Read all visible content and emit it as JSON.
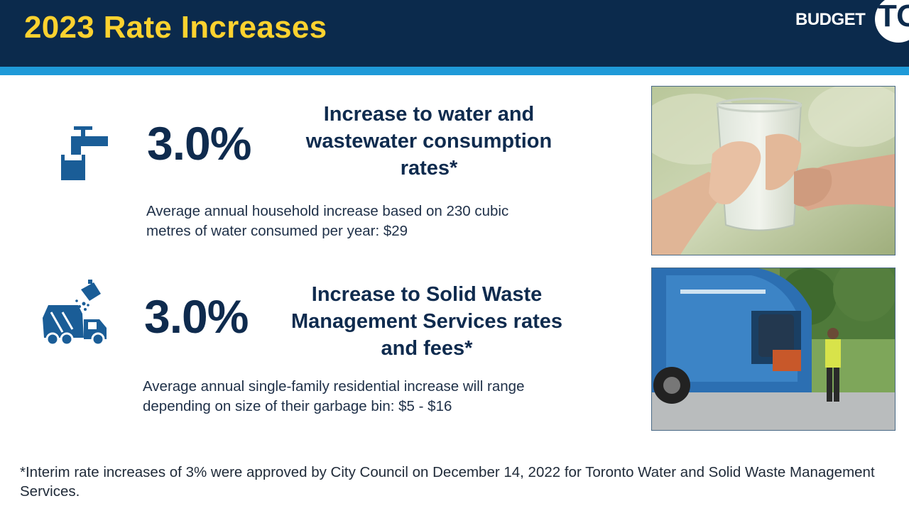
{
  "header": {
    "title": "2023 Rate Increases",
    "logo_text": "BUDGET",
    "logo_mark": "TO"
  },
  "water": {
    "icon": "water-tap-icon",
    "percent": "3.0%",
    "heading_lines": [
      "Increase to water and",
      "wastewater consumption",
      "rates*"
    ],
    "body_lines": [
      "Average annual household increase based on 230 cubic",
      "metres of water consumed per year: $29"
    ]
  },
  "waste": {
    "icon": "garbage-truck-icon",
    "percent": "3.0%",
    "heading_lines": [
      "Increase to Solid Waste",
      "Management Services rates",
      "and fees*"
    ],
    "body_lines": [
      "Average annual single-family residential increase will range",
      "depending on size of their garbage bin: $5 - $16"
    ]
  },
  "footnote": "*Interim rate increases of 3% were approved by City Council on December 14, 2022 for Toronto Water and Solid Waste Management Services.",
  "colors": {
    "header_bg": "#0b2a4c",
    "accent_stripe": "#1f9ad8",
    "title_yellow": "#fdd22f",
    "icon_blue": "#1a5d97",
    "text_navy": "#0f2b4e"
  }
}
